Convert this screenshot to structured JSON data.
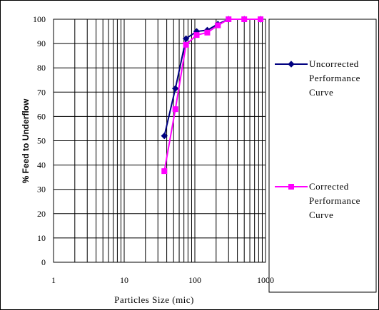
{
  "chart_data": {
    "type": "line",
    "title": "",
    "xlabel": "Particles Size (mic)",
    "ylabel": "% Feed to Underflow",
    "xscale": "log",
    "xlim": [
      1,
      1000
    ],
    "ylim": [
      0,
      100
    ],
    "x_ticks": [
      "1",
      "10",
      "100",
      "1000"
    ],
    "y_ticks": [
      "0",
      "10",
      "20",
      "30",
      "40",
      "50",
      "60",
      "70",
      "80",
      "90",
      "100"
    ],
    "grid": true,
    "legend_position": "right",
    "series": [
      {
        "legend_lines": [
          "Uncorrected",
          "Performance",
          "Curve"
        ],
        "color": "#000080",
        "marker": "diamond",
        "x": [
          37,
          53,
          75,
          106,
          150,
          212,
          300,
          500,
          850
        ],
        "y": [
          52,
          71.5,
          92,
          95,
          95.5,
          98,
          100,
          100,
          100
        ]
      },
      {
        "legend_lines": [
          "Corrected",
          "Performance",
          "Curve"
        ],
        "color": "#ff00ff",
        "marker": "square",
        "x": [
          37,
          53,
          75,
          106,
          150,
          212,
          300,
          500,
          850
        ],
        "y": [
          37.5,
          63,
          89.5,
          93.5,
          94.5,
          97.5,
          100,
          100,
          100
        ]
      }
    ]
  }
}
